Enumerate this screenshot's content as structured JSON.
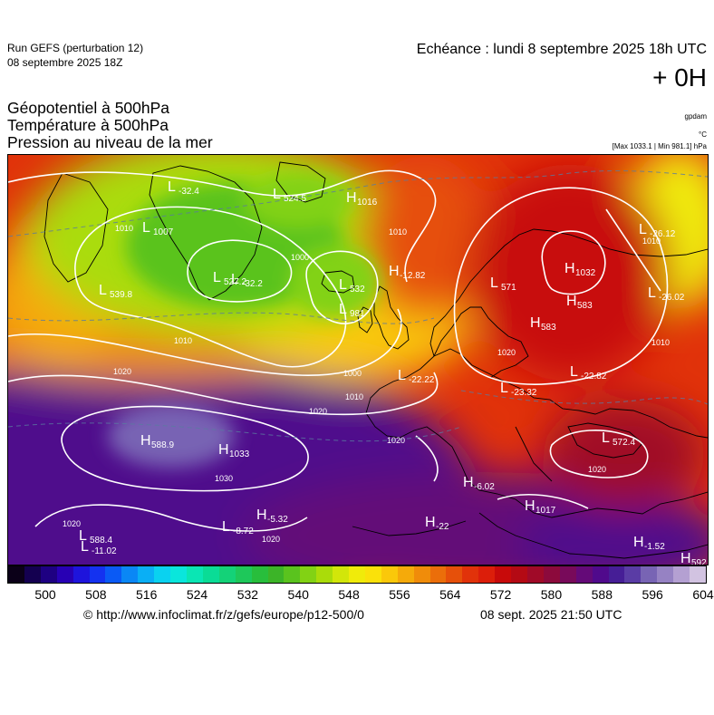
{
  "header": {
    "run_title": "Run GEFS (perturbation 12)",
    "run_date": "08 septembre 2025 18Z",
    "echeance": "Echéance : lundi 8 septembre 2025 18h UTC",
    "lead": "+ 0H"
  },
  "variables": {
    "geopotential": "Géopotentiel à 500hPa",
    "temperature": "Température à 500hPa",
    "pressure": "Pression au niveau de la mer"
  },
  "units": {
    "geopotential": "gpdam",
    "temperature": "°C",
    "pressure": "[Max 1033.1 | Min 981.1] hPa"
  },
  "map": {
    "isobar_labels": [
      "1010",
      "1010",
      "1000",
      "1000",
      "1010",
      "1010",
      "1020",
      "1020",
      "1020",
      "1030",
      "1020",
      "1020",
      "1020",
      "1010",
      "1010",
      "1020"
    ],
    "centers": [
      {
        "letter": "L",
        "value": "539.8"
      },
      {
        "letter": "L",
        "value": "527.2"
      },
      {
        "letter": "L",
        "value": "524.5"
      },
      {
        "letter": "L",
        "value": "532"
      },
      {
        "letter": "L",
        "value": "981"
      },
      {
        "letter": "L",
        "value": "571"
      },
      {
        "letter": "L",
        "value": "-22.22"
      },
      {
        "letter": "L",
        "value": "-23.32"
      },
      {
        "letter": "L",
        "value": "-22.82"
      },
      {
        "letter": "L",
        "value": "572.4"
      },
      {
        "letter": "L",
        "value": "-8.72"
      },
      {
        "letter": "L",
        "value": "588.4"
      },
      {
        "letter": "L",
        "value": "-11.02"
      },
      {
        "letter": "L",
        "value": "-26.12"
      },
      {
        "letter": "L",
        "value": "-26.02"
      },
      {
        "letter": "L",
        "value": "1007"
      },
      {
        "letter": "L",
        "value": "-32.4"
      },
      {
        "letter": "L",
        "value": "-32.2"
      },
      {
        "letter": "H",
        "value": "1032"
      },
      {
        "letter": "H",
        "value": "583"
      },
      {
        "letter": "H",
        "value": "583"
      },
      {
        "letter": "H",
        "value": "-12.82"
      },
      {
        "letter": "H",
        "value": "1033"
      },
      {
        "letter": "H",
        "value": "588.9"
      },
      {
        "letter": "H",
        "value": "-5.32"
      },
      {
        "letter": "H",
        "value": "-6.02"
      },
      {
        "letter": "H",
        "value": "1017"
      },
      {
        "letter": "H",
        "value": "-1.52"
      },
      {
        "letter": "H",
        "value": "592"
      },
      {
        "letter": "H",
        "value": "1016"
      },
      {
        "letter": "H",
        "value": "-22"
      }
    ]
  },
  "colorbar": {
    "colors": [
      "#0b0018",
      "#140050",
      "#1e0082",
      "#2800b4",
      "#1e14dc",
      "#1432f0",
      "#0a5af5",
      "#0a87f5",
      "#0aaff5",
      "#0ad2f0",
      "#0ae6dc",
      "#0ae6b4",
      "#0adc96",
      "#14d278",
      "#1ec85a",
      "#28be3c",
      "#3cb428",
      "#5ac31e",
      "#82d214",
      "#aadc0a",
      "#d2e60a",
      "#f0eb0a",
      "#fae10a",
      "#fac80a",
      "#f5aa0a",
      "#f08c0a",
      "#eb6e0a",
      "#e6500a",
      "#e1320a",
      "#dc1e0a",
      "#c80a0a",
      "#b40a14",
      "#a00a28",
      "#8c0a3c",
      "#780a5a",
      "#640a78",
      "#500a8c",
      "#461e96",
      "#5a3ca5",
      "#7864b4",
      "#9682c3",
      "#b4a0d2",
      "#d2c3e1"
    ],
    "labels": [
      "500",
      "508",
      "516",
      "524",
      "532",
      "540",
      "548",
      "556",
      "564",
      "572",
      "580",
      "588",
      "596",
      "604"
    ]
  },
  "footer": {
    "credit": "© http://www.infoclimat.fr/z/gefs/europe/p12-500/0",
    "timestamp": "08 sept. 2025 21:50 UTC"
  }
}
